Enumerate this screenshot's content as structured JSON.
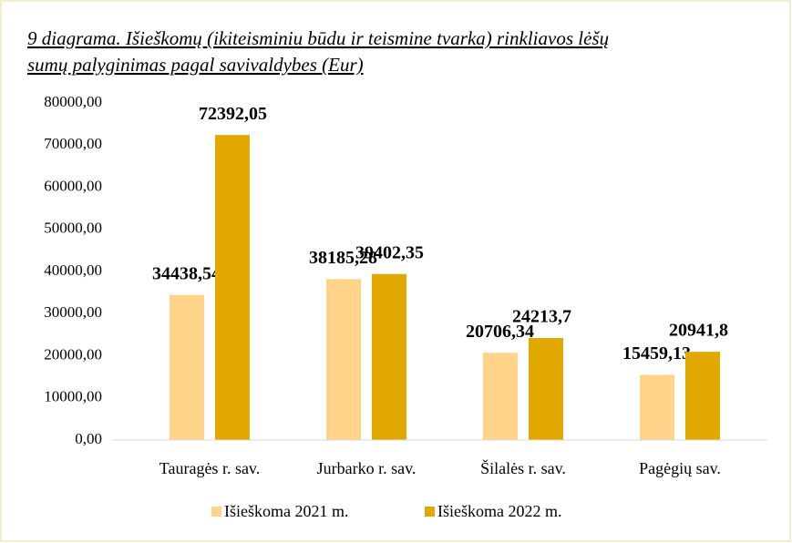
{
  "chart_data": {
    "type": "bar",
    "title": [
      "9 diagrama. Išieškomų (ikiteisminiu būdu ir teismine tvarka) rinkliavos lėšų",
      "sumų palyginimas pagal savivaldybes (Eur)"
    ],
    "categories": [
      "Tauragės r. sav.",
      "Jurbarko r. sav.",
      "Šilalės r. sav.",
      "Pagėgių sav."
    ],
    "series": [
      {
        "name": "Išieškoma 2021 m.",
        "color": "#ffd38a",
        "values": [
          34438.54,
          38185.28,
          20706.34,
          15459.13
        ],
        "value_labels": [
          "34438,54",
          "38185,28",
          "20706,34",
          "15459,13"
        ]
      },
      {
        "name": "Išieškoma 2022 m.",
        "color": "#e0a800",
        "values": [
          72392.05,
          39402.35,
          24213.7,
          20941.8
        ],
        "value_labels": [
          "72392,05",
          "39402,35",
          "24213,7",
          "20941,8"
        ]
      }
    ],
    "ylim": [
      0,
      80000
    ],
    "yticks": [
      {
        "value": 0,
        "label": "0,00"
      },
      {
        "value": 10000,
        "label": "10000,00"
      },
      {
        "value": 20000,
        "label": "20000,00"
      },
      {
        "value": 30000,
        "label": "30000,00"
      },
      {
        "value": 40000,
        "label": "40000,00"
      },
      {
        "value": 50000,
        "label": "50000,00"
      },
      {
        "value": 60000,
        "label": "60000,00"
      },
      {
        "value": 70000,
        "label": "70000,00"
      },
      {
        "value": 80000,
        "label": "80000,00"
      }
    ],
    "grid": false,
    "legend": "bottom"
  }
}
